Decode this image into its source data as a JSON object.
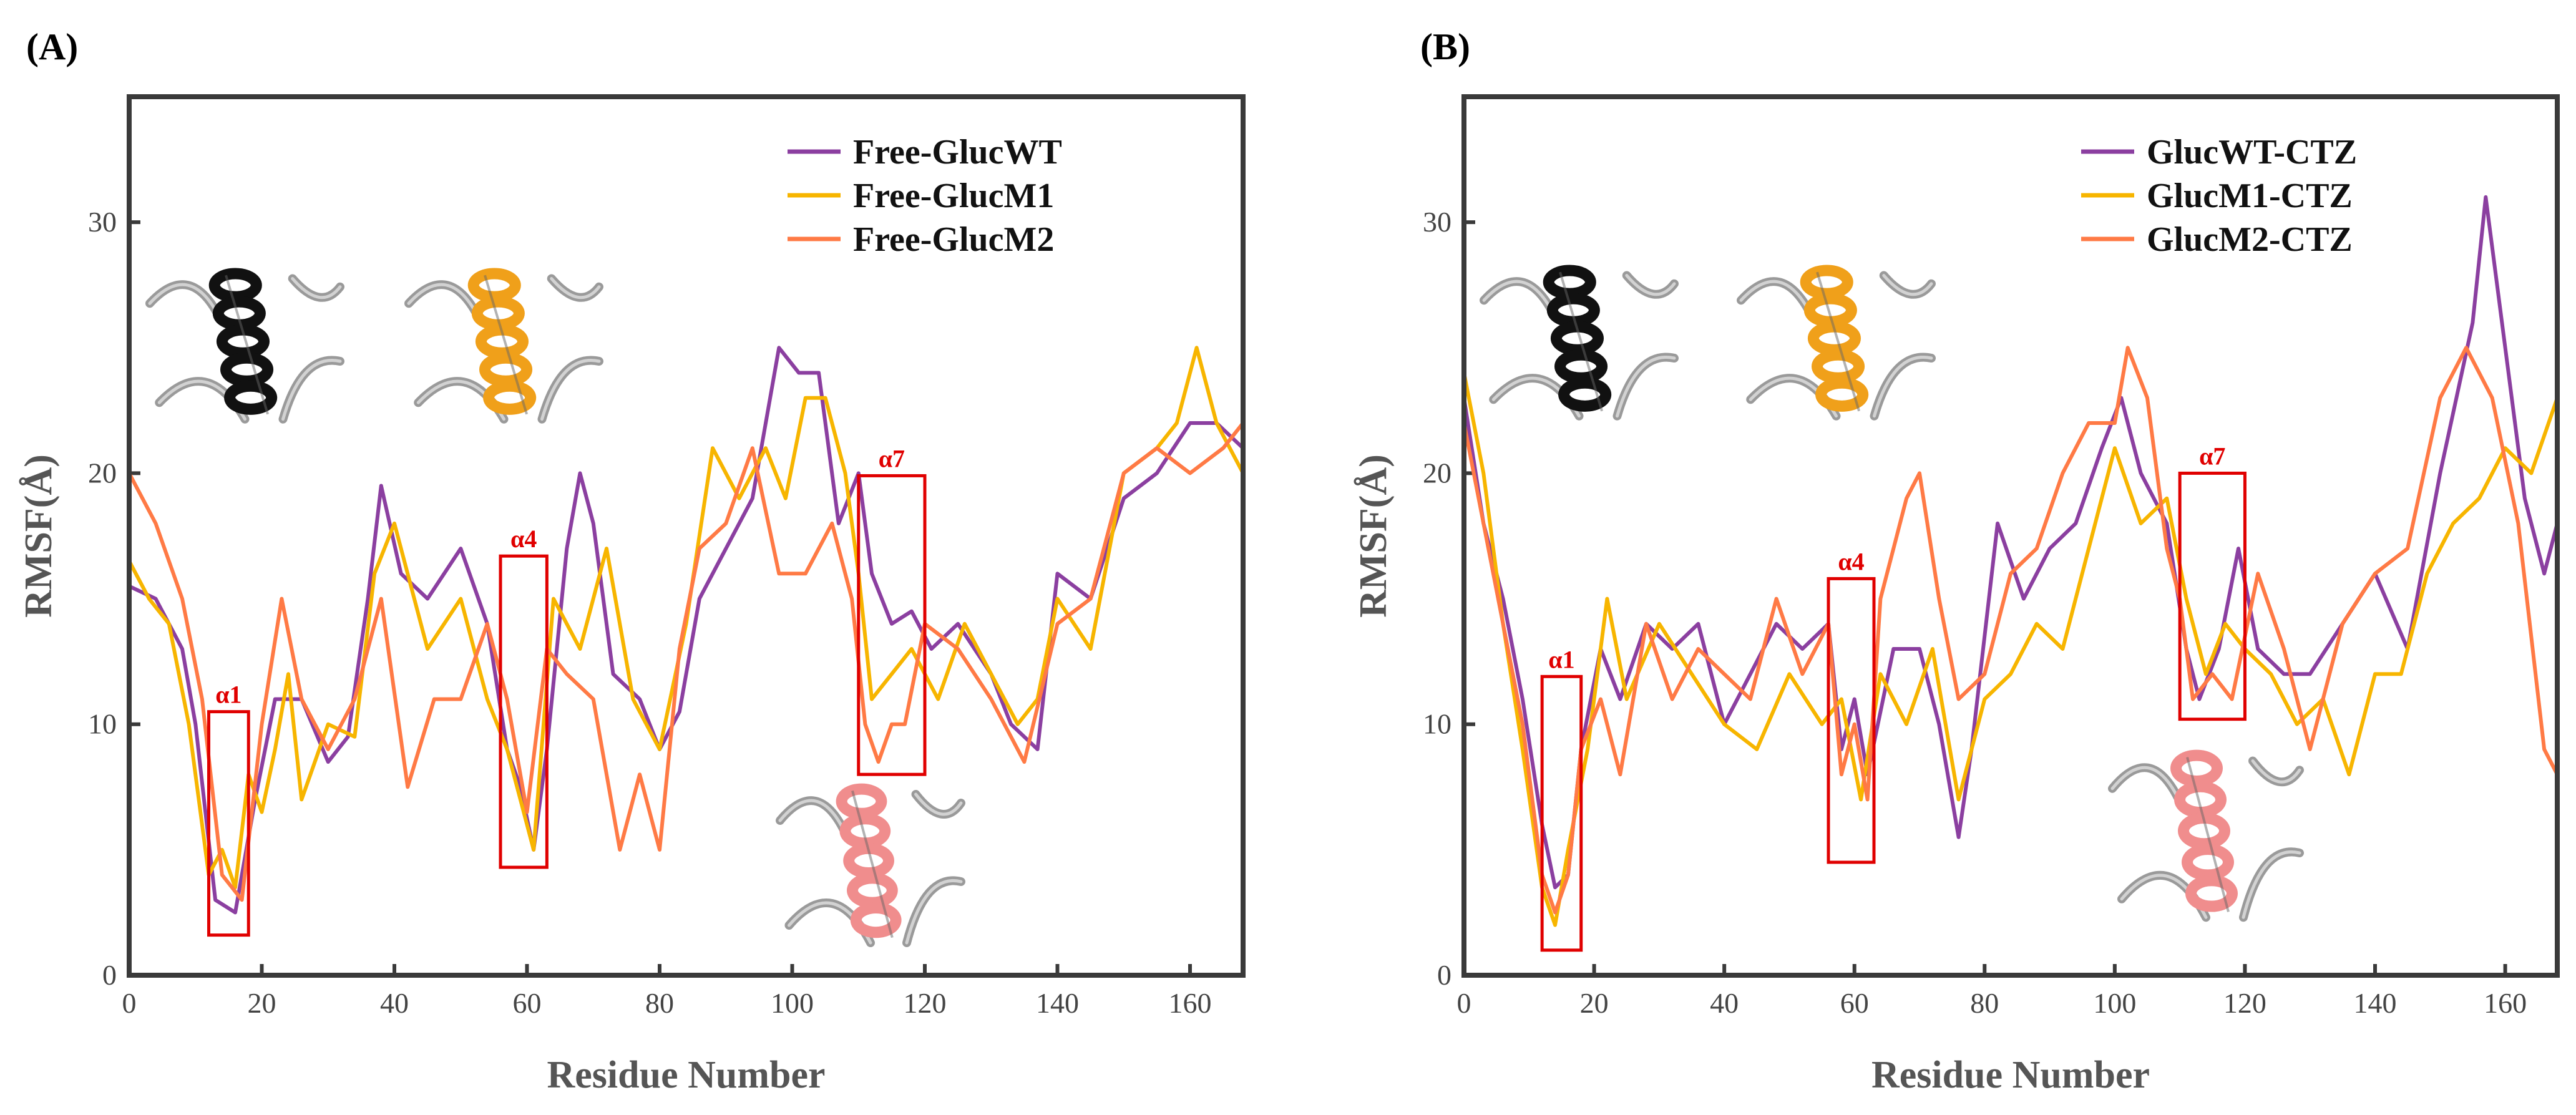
{
  "colors": {
    "wt": "#8b3fa0",
    "m1": "#f7b500",
    "m2": "#ff7a45",
    "region": "#e00000",
    "helix_black": "#111111",
    "helix_orange": "#f0a01a",
    "helix_pink": "#f08d8d"
  },
  "chart_data": [
    {
      "type": "line",
      "panel_label": "(A)",
      "xlabel": "Residue Number",
      "ylabel": "RMSF(Å)",
      "xlim": [
        0,
        168
      ],
      "ylim": [
        0,
        35
      ],
      "xticks": [
        0,
        20,
        40,
        60,
        80,
        100,
        120,
        140,
        160
      ],
      "yticks": [
        0,
        10,
        20,
        30
      ],
      "legend_position": "top-right",
      "grid": false,
      "series": [
        {
          "name": "Free-GlucWT",
          "color": "#8b3fa0",
          "x": [
            0,
            4,
            8,
            10,
            13,
            16,
            19,
            22,
            26,
            30,
            33,
            36,
            38,
            41,
            45,
            50,
            54,
            57,
            59,
            61,
            63,
            66,
            68,
            70,
            73,
            77,
            80,
            83,
            86,
            90,
            94,
            98,
            101,
            104,
            107,
            110,
            112,
            115,
            118,
            121,
            125,
            130,
            133,
            137,
            140,
            145,
            150,
            155,
            160,
            164,
            168
          ],
          "y": [
            15.5,
            15,
            13,
            10,
            3,
            2.5,
            7,
            11,
            11,
            8.5,
            9.5,
            15,
            19.5,
            16,
            15,
            17,
            14,
            9,
            7.5,
            5,
            9,
            17,
            20,
            18,
            12,
            11,
            9,
            10.5,
            15,
            17,
            19,
            25,
            24,
            24,
            18,
            20,
            16,
            14,
            14.5,
            13,
            14,
            12,
            10,
            9,
            16,
            15,
            19,
            20,
            22,
            22,
            21
          ]
        },
        {
          "name": "Free-GlucM1",
          "color": "#f7b500",
          "x": [
            0,
            3,
            6,
            9,
            12,
            14,
            16,
            18,
            20,
            22,
            24,
            26,
            30,
            34,
            37,
            40,
            45,
            50,
            54,
            57,
            59,
            61,
            64,
            68,
            72,
            76,
            80,
            84,
            88,
            92,
            96,
            99,
            102,
            105,
            108,
            110,
            112,
            115,
            118,
            122,
            126,
            130,
            134,
            137,
            140,
            145,
            150,
            155,
            158,
            161,
            164,
            168
          ],
          "y": [
            16.5,
            15,
            14,
            10,
            4,
            5,
            3.5,
            8,
            6.5,
            9,
            12,
            7,
            10,
            9.5,
            16,
            18,
            13,
            15,
            11,
            9,
            7,
            5,
            15,
            13,
            17,
            11,
            9,
            14,
            21,
            19,
            21,
            19,
            23,
            23,
            20,
            16,
            11,
            12,
            13,
            11,
            14,
            12,
            10,
            11,
            15,
            13,
            20,
            21,
            22,
            25,
            22,
            20
          ]
        },
        {
          "name": "Free-GlucM2",
          "color": "#ff7a45",
          "x": [
            0,
            4,
            8,
            11,
            14,
            17,
            20,
            23,
            26,
            30,
            34,
            38,
            42,
            46,
            50,
            54,
            57,
            60,
            63,
            66,
            70,
            74,
            77,
            80,
            83,
            86,
            90,
            94,
            98,
            102,
            106,
            109,
            111,
            113,
            115,
            117,
            120,
            125,
            130,
            135,
            140,
            145,
            150,
            155,
            160,
            165,
            168
          ],
          "y": [
            20,
            18,
            15,
            11,
            4,
            3,
            10,
            15,
            11,
            9,
            11,
            15,
            7.5,
            11,
            11,
            14,
            11,
            6.5,
            13,
            12,
            11,
            5,
            8,
            5,
            13,
            17,
            18,
            21,
            16,
            16,
            18,
            15,
            10,
            8.5,
            10,
            10,
            14,
            13,
            11,
            8.5,
            14,
            15,
            20,
            21,
            20,
            21,
            22
          ]
        }
      ],
      "annotations": [
        {
          "label": "α1",
          "x_range": [
            12,
            18
          ],
          "y_range": [
            1.6,
            10.5
          ]
        },
        {
          "label": "α4",
          "x_range": [
            56,
            63
          ],
          "y_range": [
            4.3,
            16.7
          ]
        },
        {
          "label": "α7",
          "x_range": [
            110,
            120
          ],
          "y_range": [
            8,
            19.9
          ]
        }
      ]
    },
    {
      "type": "line",
      "panel_label": "(B)",
      "xlabel": "Residue Number",
      "ylabel": "RMSF(Å)",
      "xlim": [
        0,
        168
      ],
      "ylim": [
        0,
        35
      ],
      "xticks": [
        0,
        20,
        40,
        60,
        80,
        100,
        120,
        140,
        160
      ],
      "yticks": [
        0,
        10,
        20,
        30
      ],
      "legend_position": "top-right",
      "grid": false,
      "series": [
        {
          "name": "GlucWT-CTZ",
          "color": "#8b3fa0",
          "x": [
            0,
            3,
            6,
            9,
            12,
            14,
            16,
            18,
            21,
            24,
            28,
            32,
            36,
            40,
            44,
            48,
            52,
            56,
            58,
            60,
            62,
            66,
            70,
            73,
            76,
            78,
            82,
            86,
            90,
            94,
            98,
            101,
            104,
            108,
            111,
            113,
            116,
            119,
            122,
            126,
            130,
            135,
            140,
            145,
            150,
            155,
            157,
            160,
            163,
            166,
            168
          ],
          "y": [
            23,
            18,
            15,
            11,
            6,
            3.5,
            4,
            9,
            13,
            11,
            14,
            13,
            14,
            10,
            12,
            14,
            13,
            14,
            9,
            11,
            8,
            13,
            13,
            10,
            5.5,
            9,
            18,
            15,
            17,
            18,
            21,
            23,
            20,
            18,
            13,
            11,
            13,
            17,
            13,
            12,
            12,
            14,
            16,
            13,
            20,
            26,
            31,
            25,
            19,
            16,
            18
          ]
        },
        {
          "name": "GlucM1-CTZ",
          "color": "#f7b500",
          "x": [
            0,
            3,
            6,
            9,
            12,
            14,
            16,
            19,
            22,
            25,
            30,
            35,
            40,
            45,
            50,
            55,
            58,
            61,
            64,
            68,
            72,
            76,
            80,
            84,
            88,
            92,
            96,
            100,
            104,
            108,
            111,
            114,
            117,
            120,
            124,
            128,
            132,
            136,
            140,
            144,
            148,
            152,
            156,
            160,
            164,
            168
          ],
          "y": [
            24,
            20,
            14,
            9,
            3.5,
            2,
            5,
            9,
            15,
            11,
            14,
            12,
            10,
            9,
            12,
            10,
            11,
            7,
            12,
            10,
            13,
            7,
            11,
            12,
            14,
            13,
            17,
            21,
            18,
            19,
            15,
            12,
            14,
            13,
            12,
            10,
            11,
            8,
            12,
            12,
            16,
            18,
            19,
            21,
            20,
            23
          ]
        },
        {
          "name": "GlucM2-CTZ",
          "color": "#ff7a45",
          "x": [
            0,
            3,
            6,
            9,
            12,
            14,
            16,
            18,
            21,
            24,
            28,
            32,
            36,
            40,
            44,
            48,
            52,
            56,
            58,
            60,
            62,
            64,
            66,
            68,
            70,
            73,
            76,
            80,
            84,
            88,
            92,
            96,
            100,
            102,
            105,
            108,
            110,
            112,
            115,
            118,
            122,
            126,
            130,
            135,
            140,
            145,
            150,
            154,
            158,
            162,
            166,
            168
          ],
          "y": [
            22,
            18,
            14,
            10,
            4,
            2.5,
            4,
            9,
            11,
            8,
            14,
            11,
            13,
            12,
            11,
            15,
            12,
            14,
            8,
            10,
            7,
            15,
            17,
            19,
            20,
            15,
            11,
            12,
            16,
            17,
            20,
            22,
            22,
            25,
            23,
            17,
            15,
            11,
            12,
            11,
            16,
            13,
            9,
            14,
            16,
            17,
            23,
            25,
            23,
            18,
            9,
            8
          ]
        }
      ],
      "annotations": [
        {
          "label": "α1",
          "x_range": [
            12,
            18
          ],
          "y_range": [
            1,
            11.9
          ]
        },
        {
          "label": "α4",
          "x_range": [
            56,
            63
          ],
          "y_range": [
            4.5,
            15.8
          ]
        },
        {
          "label": "α7",
          "x_range": [
            110,
            120
          ],
          "y_range": [
            10.2,
            20
          ]
        }
      ]
    }
  ]
}
